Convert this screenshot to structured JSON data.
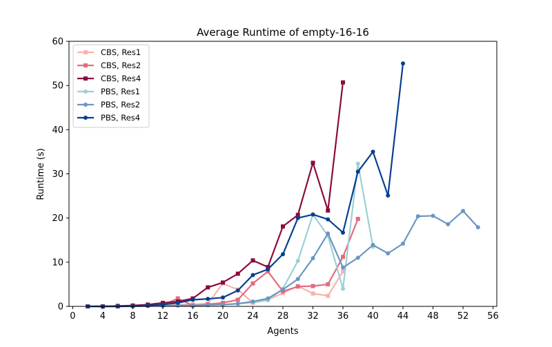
{
  "chart_data": {
    "type": "line",
    "title": "Average Runtime of empty-16-16",
    "xlabel": "Agents",
    "ylabel": "Runtime (s)",
    "xlim": [
      -0.5,
      56.5
    ],
    "ylim": [
      0,
      60
    ],
    "xticks": [
      0,
      4,
      8,
      12,
      16,
      20,
      24,
      28,
      32,
      36,
      40,
      44,
      48,
      52,
      56
    ],
    "yticks": [
      0,
      10,
      20,
      30,
      40,
      50,
      60
    ],
    "grid": false,
    "legend_position": "top-left",
    "series": [
      {
        "name": "CBS, Res1",
        "color": "#f9b4ab",
        "marker": "square",
        "x": [
          2,
          4,
          6,
          8,
          10,
          12,
          14,
          16,
          18,
          20,
          22,
          24,
          26,
          28,
          30,
          32,
          34,
          36
        ],
        "y": [
          0.0,
          0.0,
          0.0,
          0.1,
          0.2,
          0.3,
          0.4,
          0.5,
          0.6,
          5.2,
          3.8,
          0.8,
          1.5,
          3.0,
          4.6,
          2.9,
          2.4,
          7.9
        ]
      },
      {
        "name": "CBS, Res2",
        "color": "#e56b7e",
        "marker": "square",
        "x": [
          2,
          4,
          6,
          8,
          10,
          12,
          14,
          16,
          18,
          20,
          22,
          24,
          26,
          28,
          30,
          32,
          34,
          36,
          38
        ],
        "y": [
          0.0,
          0.0,
          0.0,
          0.1,
          0.2,
          0.3,
          1.8,
          0.2,
          0.5,
          0.8,
          1.5,
          5.2,
          7.9,
          3.4,
          4.5,
          4.6,
          5.0,
          11.2,
          19.8
        ]
      },
      {
        "name": "CBS, Res4",
        "color": "#8b0a3e",
        "marker": "square",
        "x": [
          2,
          4,
          6,
          8,
          10,
          12,
          14,
          16,
          18,
          20,
          22,
          24,
          26,
          28,
          30,
          32,
          34,
          36
        ],
        "y": [
          0.0,
          0.0,
          0.1,
          0.2,
          0.4,
          0.8,
          1.1,
          1.8,
          4.3,
          5.4,
          7.4,
          10.4,
          8.9,
          18.1,
          20.7,
          32.5,
          21.7,
          50.7
        ]
      },
      {
        "name": "PBS, Res1",
        "color": "#9ccfd5",
        "marker": "circle",
        "x": [
          2,
          4,
          6,
          8,
          10,
          12,
          14,
          16,
          18,
          20,
          22,
          24,
          26,
          28,
          30,
          32,
          34,
          36,
          38,
          40
        ],
        "y": [
          0.0,
          0.0,
          0.0,
          0.0,
          0.1,
          0.1,
          0.2,
          0.2,
          0.3,
          0.4,
          0.6,
          0.9,
          1.4,
          4.0,
          10.3,
          20.8,
          16.0,
          4.0,
          32.3,
          13.5
        ]
      },
      {
        "name": "PBS, Res2",
        "color": "#6a96c2",
        "marker": "circle",
        "x": [
          2,
          4,
          6,
          8,
          10,
          12,
          14,
          16,
          18,
          20,
          22,
          24,
          26,
          28,
          30,
          32,
          34,
          36,
          38,
          40,
          42,
          44,
          46,
          48,
          50,
          52,
          54
        ],
        "y": [
          0.0,
          0.0,
          0.0,
          0.0,
          0.1,
          0.1,
          0.2,
          0.2,
          0.3,
          0.4,
          0.6,
          1.1,
          1.8,
          3.8,
          6.2,
          10.9,
          16.5,
          8.8,
          11.0,
          13.9,
          12.0,
          14.2,
          20.4,
          20.5,
          18.6,
          21.6,
          17.9
        ]
      },
      {
        "name": "PBS, Res4",
        "color": "#053f8f",
        "marker": "circle",
        "x": [
          2,
          4,
          6,
          8,
          10,
          12,
          14,
          16,
          18,
          20,
          22,
          24,
          26,
          28,
          30,
          32,
          34,
          36,
          38,
          40,
          42,
          44
        ],
        "y": [
          0.0,
          0.0,
          0.0,
          0.1,
          0.2,
          0.4,
          0.8,
          1.5,
          1.7,
          2.0,
          3.6,
          7.1,
          8.4,
          11.8,
          20.0,
          20.8,
          19.7,
          16.7,
          30.5,
          35.0,
          25.1,
          55.0
        ]
      }
    ]
  }
}
